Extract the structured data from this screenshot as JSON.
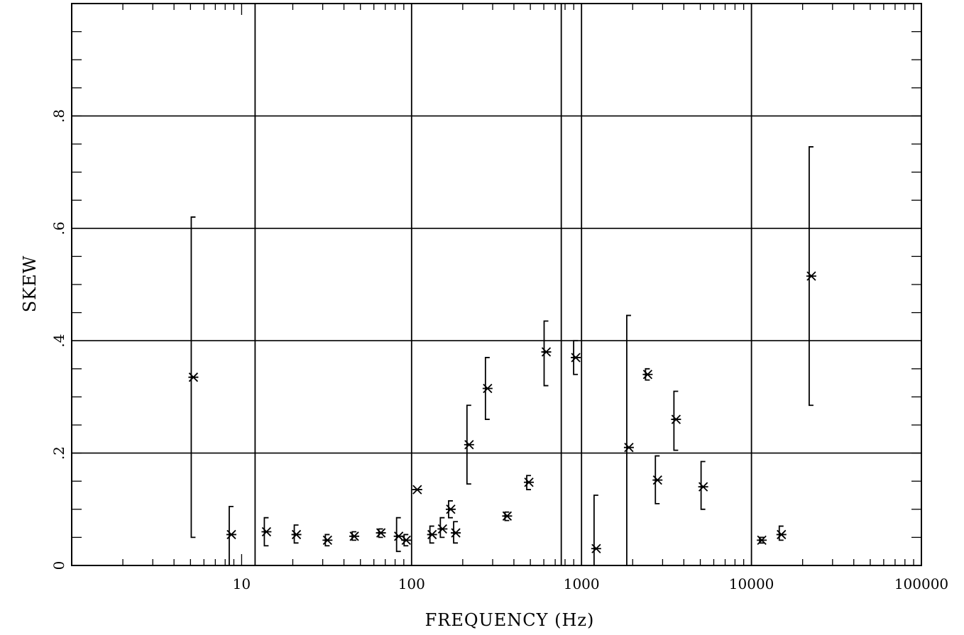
{
  "chart_data": {
    "type": "scatter",
    "title": "",
    "xlabel": "FREQUENCY (Hz)",
    "ylabel": "SKEW",
    "x_scale": "log",
    "xlim": [
      1,
      100000
    ],
    "ylim": [
      0,
      1.0
    ],
    "x_tick_values": [
      10,
      100,
      1000,
      10000,
      100000
    ],
    "x_tick_labels": [
      "10",
      "100",
      "1000",
      "10000",
      "100000"
    ],
    "y_tick_values": [
      0,
      0.2,
      0.4,
      0.6,
      0.8
    ],
    "y_tick_labels": [
      "0",
      ".2",
      ".4",
      ".6",
      ".8"
    ],
    "grid": true,
    "marker": "asterisk",
    "points": [
      {
        "x": 5.2,
        "y": 0.335,
        "err": [
          0.05,
          0.62
        ]
      },
      {
        "x": 8.7,
        "y": 0.055,
        "err": [
          0.0,
          0.105
        ]
      },
      {
        "x": 14,
        "y": 0.06,
        "err": [
          0.035,
          0.085
        ]
      },
      {
        "x": 21,
        "y": 0.055,
        "err": [
          0.04,
          0.072
        ]
      },
      {
        "x": 32,
        "y": 0.045,
        "err": [
          0.035,
          0.055
        ]
      },
      {
        "x": 46,
        "y": 0.052,
        "err": [
          0.045,
          0.06
        ]
      },
      {
        "x": 66,
        "y": 0.058,
        "err": [
          0.05,
          0.065
        ]
      },
      {
        "x": 84,
        "y": 0.052,
        "err": [
          0.025,
          0.085
        ]
      },
      {
        "x": 93,
        "y": 0.045,
        "err": [
          0.035,
          0.055
        ]
      },
      {
        "x": 108,
        "y": 0.135,
        "err": null
      },
      {
        "x": 132,
        "y": 0.055,
        "err": [
          0.04,
          0.07
        ]
      },
      {
        "x": 152,
        "y": 0.065,
        "err": [
          0.05,
          0.085
        ]
      },
      {
        "x": 170,
        "y": 0.1,
        "err": [
          0.085,
          0.115
        ]
      },
      {
        "x": 182,
        "y": 0.058,
        "err": [
          0.04,
          0.078
        ]
      },
      {
        "x": 218,
        "y": 0.215,
        "err": [
          0.145,
          0.285
        ]
      },
      {
        "x": 280,
        "y": 0.315,
        "err": [
          0.26,
          0.37
        ]
      },
      {
        "x": 365,
        "y": 0.088,
        "err": [
          0.08,
          0.095
        ]
      },
      {
        "x": 490,
        "y": 0.148,
        "err": [
          0.135,
          0.16
        ]
      },
      {
        "x": 620,
        "y": 0.38,
        "err": [
          0.32,
          0.435
        ]
      },
      {
        "x": 925,
        "y": 0.37,
        "err": [
          0.34,
          0.4
        ]
      },
      {
        "x": 1220,
        "y": 0.03,
        "err": [
          0.0,
          0.125
        ]
      },
      {
        "x": 1900,
        "y": 0.21,
        "err": [
          0.0,
          0.445
        ]
      },
      {
        "x": 2450,
        "y": 0.34,
        "err": [
          0.33,
          0.35
        ]
      },
      {
        "x": 2800,
        "y": 0.152,
        "err": [
          0.11,
          0.195
        ]
      },
      {
        "x": 3600,
        "y": 0.26,
        "err": [
          0.205,
          0.31
        ]
      },
      {
        "x": 5200,
        "y": 0.14,
        "err": [
          0.1,
          0.185
        ]
      },
      {
        "x": 11500,
        "y": 0.045,
        "err": [
          0.04,
          0.05
        ]
      },
      {
        "x": 15000,
        "y": 0.055,
        "err": [
          0.045,
          0.07
        ]
      },
      {
        "x": 22500,
        "y": 0.515,
        "err": [
          0.285,
          0.745
        ]
      }
    ],
    "extra_vertical_lines_x": [
      12,
      100,
      760,
      1000,
      10000
    ]
  }
}
